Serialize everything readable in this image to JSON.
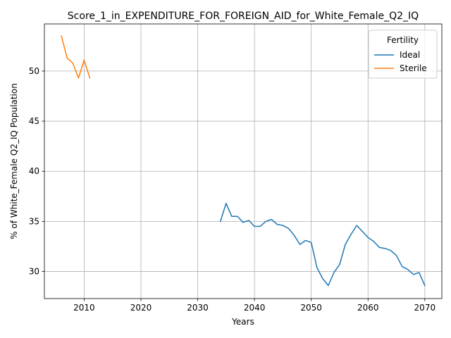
{
  "chart_data": {
    "type": "line",
    "title": "Score_1_in_EXPENDITURE_FOR_FOREIGN_AID_for_White_Female_Q2_IQ",
    "xlabel": "Years",
    "ylabel": "% of White_Female Q2_IQ Population",
    "xlim": [
      2003,
      2073
    ],
    "ylim": [
      27.3,
      54.7
    ],
    "xticks": [
      2010,
      2020,
      2030,
      2040,
      2050,
      2060,
      2070
    ],
    "yticks": [
      30,
      35,
      40,
      45,
      50
    ],
    "grid": true,
    "legend": {
      "title": "Fertility",
      "placement": "top-right"
    },
    "series": [
      {
        "name": "Ideal",
        "color": "#1f77b4",
        "x": [
          2034,
          2035,
          2036,
          2037,
          2038,
          2039,
          2040,
          2041,
          2042,
          2043,
          2044,
          2045,
          2046,
          2047,
          2048,
          2049,
          2050,
          2051,
          2052,
          2053,
          2054,
          2055,
          2056,
          2057,
          2058,
          2059,
          2060,
          2061,
          2062,
          2063,
          2064,
          2065,
          2066,
          2067,
          2068,
          2069,
          2070
        ],
        "y": [
          35.0,
          36.8,
          35.5,
          35.5,
          34.9,
          35.1,
          34.5,
          34.5,
          35.0,
          35.2,
          34.7,
          34.6,
          34.3,
          33.6,
          32.7,
          33.1,
          32.9,
          30.4,
          29.3,
          28.6,
          29.9,
          30.7,
          32.7,
          33.7,
          34.6,
          34.0,
          33.4,
          33.0,
          32.4,
          32.3,
          32.1,
          31.6,
          30.5,
          30.2,
          29.7,
          29.9,
          28.6
        ]
      },
      {
        "name": "Sterile",
        "color": "#ff7f0e",
        "x": [
          2006,
          2007,
          2008,
          2009,
          2010,
          2011
        ],
        "y": [
          53.5,
          51.3,
          50.8,
          49.3,
          51.1,
          49.3
        ]
      }
    ]
  }
}
